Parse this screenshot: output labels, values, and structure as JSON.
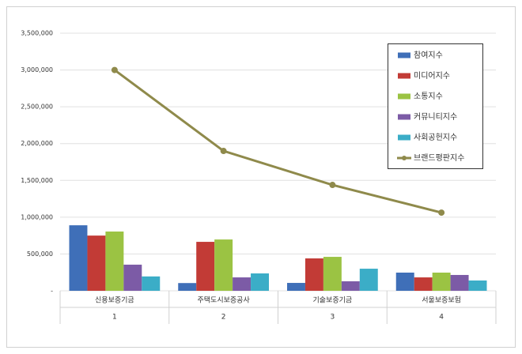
{
  "chart_data": {
    "type": "combo",
    "categories": [
      "신용보증기금",
      "주택도시보증공사",
      "기술보증기금",
      "서울보증보험"
    ],
    "categories2": [
      "1",
      "2",
      "3",
      "4"
    ],
    "series": [
      {
        "name": "참여지수",
        "type": "bar",
        "color": "#3f6fb8",
        "values": [
          890000,
          105000,
          107000,
          247000
        ]
      },
      {
        "name": "미디어지수",
        "type": "bar",
        "color": "#c23b36",
        "values": [
          750000,
          665000,
          440000,
          182000
        ]
      },
      {
        "name": "소통지수",
        "type": "bar",
        "color": "#9bc343",
        "values": [
          805000,
          697000,
          461000,
          247000
        ]
      },
      {
        "name": "커뮤니티지수",
        "type": "bar",
        "color": "#7c5ba6",
        "values": [
          355000,
          182000,
          129000,
          215000
        ]
      },
      {
        "name": "사회공헌지수",
        "type": "bar",
        "color": "#3badc7",
        "values": [
          195000,
          236000,
          300000,
          140000
        ]
      },
      {
        "name": "브랜드평판지수",
        "type": "line",
        "color": "#8f8a4b",
        "values": [
          3000000,
          1900000,
          1438000,
          1062000
        ]
      }
    ],
    "ylim": [
      0,
      3500000
    ],
    "yticks": [
      {
        "value": 0,
        "label": "-"
      },
      {
        "value": 500000,
        "label": "500,000"
      },
      {
        "value": 1000000,
        "label": "1,000,000"
      },
      {
        "value": 1500000,
        "label": "1,500,000"
      },
      {
        "value": 2000000,
        "label": "2,000,000"
      },
      {
        "value": 2500000,
        "label": "2,500,000"
      },
      {
        "value": 3000000,
        "label": "3,000,000"
      },
      {
        "value": 3500000,
        "label": "3,500,000"
      }
    ],
    "grid": true,
    "legend": "upper-right"
  }
}
